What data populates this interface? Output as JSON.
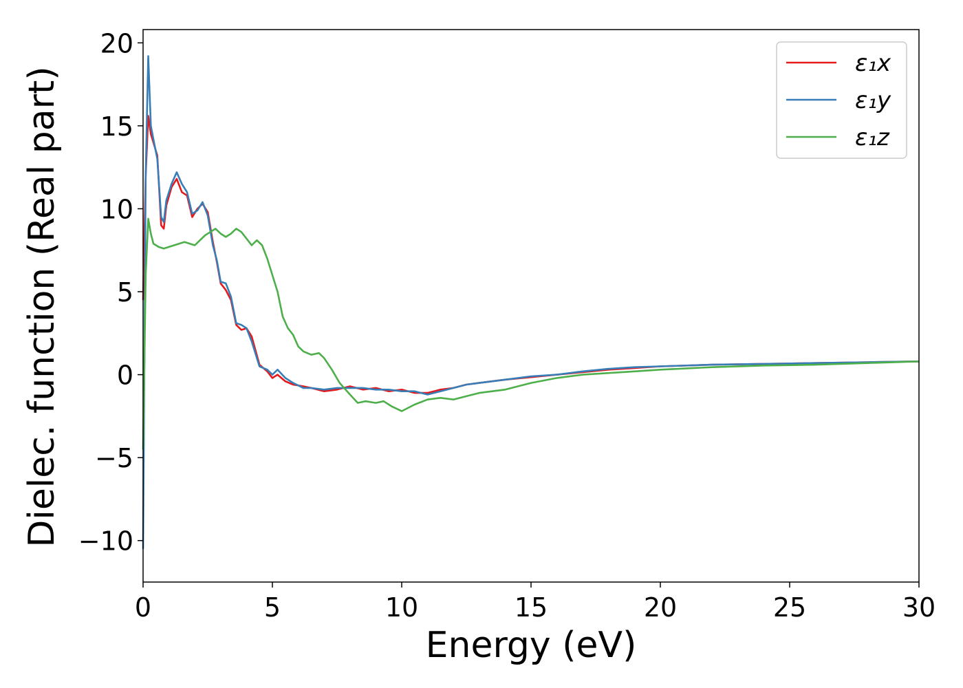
{
  "chart_data": {
    "type": "line",
    "title": "",
    "xlabel": "Energy (eV)",
    "ylabel": "Dielec. function (Real part)",
    "xlim": [
      0,
      30
    ],
    "ylim": [
      -12.5,
      20.8
    ],
    "xticks": [
      0,
      5,
      10,
      15,
      20,
      25,
      30
    ],
    "xtick_labels": [
      "0",
      "5",
      "10",
      "15",
      "20",
      "25",
      "30"
    ],
    "yticks": [
      -10,
      -5,
      0,
      5,
      10,
      15,
      20
    ],
    "ytick_labels": [
      "−10",
      "−5",
      "0",
      "5",
      "10",
      "15",
      "20"
    ],
    "grid": false,
    "legend_position": "top-right",
    "series": [
      {
        "name": "ε₁x",
        "color": "#e41a1c",
        "x": [
          0,
          0.1,
          0.2,
          0.3,
          0.4,
          0.55,
          0.7,
          0.8,
          0.9,
          1.1,
          1.3,
          1.5,
          1.7,
          1.9,
          2.1,
          2.3,
          2.5,
          2.7,
          2.85,
          3.0,
          3.2,
          3.4,
          3.6,
          3.8,
          4.0,
          4.2,
          4.5,
          4.8,
          5.0,
          5.2,
          5.5,
          5.8,
          6.2,
          6.5,
          7.0,
          7.5,
          8.0,
          8.5,
          9.0,
          9.5,
          10.0,
          10.5,
          11.0,
          11.5,
          12.0,
          12.5,
          13.0,
          13.5,
          14.0,
          15.0,
          16.0,
          17.0,
          18.0,
          19.0,
          20.0,
          22.0,
          24.0,
          26.0,
          28.0,
          30.0
        ],
        "y": [
          4.5,
          12.0,
          15.6,
          14.5,
          14.0,
          13.2,
          9.0,
          8.8,
          10.2,
          11.3,
          11.8,
          11.0,
          10.8,
          9.5,
          10.0,
          10.3,
          9.8,
          8.0,
          6.8,
          5.5,
          5.1,
          4.5,
          3.0,
          2.7,
          2.8,
          2.3,
          0.6,
          0.2,
          -0.2,
          0.0,
          -0.4,
          -0.6,
          -0.7,
          -0.8,
          -1.0,
          -0.9,
          -0.7,
          -0.9,
          -0.8,
          -1.0,
          -0.9,
          -1.1,
          -1.1,
          -0.9,
          -0.8,
          -0.6,
          -0.5,
          -0.4,
          -0.3,
          -0.15,
          0.0,
          0.15,
          0.3,
          0.4,
          0.5,
          0.6,
          0.65,
          0.7,
          0.75,
          0.8
        ]
      },
      {
        "name": "ε₁y",
        "color": "#377eb8",
        "x": [
          0,
          0.1,
          0.2,
          0.3,
          0.4,
          0.55,
          0.7,
          0.8,
          0.9,
          1.1,
          1.3,
          1.5,
          1.7,
          1.9,
          2.1,
          2.3,
          2.5,
          2.7,
          2.85,
          3.0,
          3.2,
          3.4,
          3.6,
          3.8,
          4.0,
          4.2,
          4.5,
          4.8,
          5.0,
          5.2,
          5.5,
          5.8,
          6.2,
          6.5,
          7.0,
          7.5,
          8.0,
          8.5,
          9.0,
          9.5,
          10.0,
          10.5,
          11.0,
          11.5,
          12.0,
          12.5,
          13.0,
          13.5,
          14.0,
          15.0,
          16.0,
          17.0,
          18.0,
          19.0,
          20.0,
          22.0,
          24.0,
          26.0,
          28.0,
          30.0
        ],
        "y": [
          -10.5,
          12.0,
          19.2,
          15.0,
          14.2,
          13.0,
          9.5,
          9.2,
          10.5,
          11.5,
          12.2,
          11.5,
          11.0,
          9.7,
          9.9,
          10.4,
          9.6,
          7.8,
          6.9,
          5.6,
          5.5,
          4.7,
          3.1,
          3.0,
          2.8,
          2.0,
          0.5,
          0.3,
          0.0,
          0.3,
          -0.2,
          -0.5,
          -0.8,
          -0.8,
          -0.9,
          -0.8,
          -0.8,
          -0.8,
          -0.9,
          -0.9,
          -1.0,
          -1.0,
          -1.2,
          -1.0,
          -0.8,
          -0.6,
          -0.5,
          -0.4,
          -0.3,
          -0.1,
          0.0,
          0.2,
          0.35,
          0.45,
          0.5,
          0.6,
          0.65,
          0.7,
          0.75,
          0.8
        ]
      },
      {
        "name": "ε₁z",
        "color": "#4daf4a",
        "x": [
          0,
          0.1,
          0.2,
          0.3,
          0.4,
          0.6,
          0.8,
          1.0,
          1.2,
          1.4,
          1.6,
          1.8,
          2.0,
          2.2,
          2.4,
          2.6,
          2.8,
          3.0,
          3.2,
          3.4,
          3.6,
          3.8,
          4.0,
          4.2,
          4.4,
          4.6,
          4.8,
          5.0,
          5.2,
          5.4,
          5.6,
          5.8,
          6.0,
          6.2,
          6.5,
          6.8,
          7.0,
          7.3,
          7.6,
          8.0,
          8.3,
          8.6,
          9.0,
          9.3,
          9.6,
          10.0,
          10.5,
          11.0,
          11.5,
          12.0,
          12.5,
          13.0,
          13.5,
          14.0,
          15.0,
          16.0,
          17.0,
          18.0,
          19.0,
          20.0,
          22.0,
          24.0,
          26.0,
          28.0,
          30.0
        ],
        "y": [
          -4.5,
          6.0,
          9.4,
          8.5,
          7.9,
          7.7,
          7.6,
          7.7,
          7.8,
          7.9,
          8.0,
          7.9,
          7.8,
          8.1,
          8.4,
          8.6,
          8.8,
          8.5,
          8.3,
          8.5,
          8.8,
          8.6,
          8.2,
          7.8,
          8.1,
          7.8,
          7.0,
          6.0,
          5.0,
          3.5,
          2.8,
          2.4,
          1.7,
          1.4,
          1.2,
          1.3,
          1.0,
          0.3,
          -0.5,
          -1.2,
          -1.7,
          -1.6,
          -1.7,
          -1.6,
          -1.9,
          -2.2,
          -1.8,
          -1.5,
          -1.4,
          -1.5,
          -1.3,
          -1.1,
          -1.0,
          -0.9,
          -0.5,
          -0.2,
          0.0,
          0.1,
          0.2,
          0.3,
          0.45,
          0.55,
          0.6,
          0.7,
          0.8
        ]
      }
    ]
  }
}
